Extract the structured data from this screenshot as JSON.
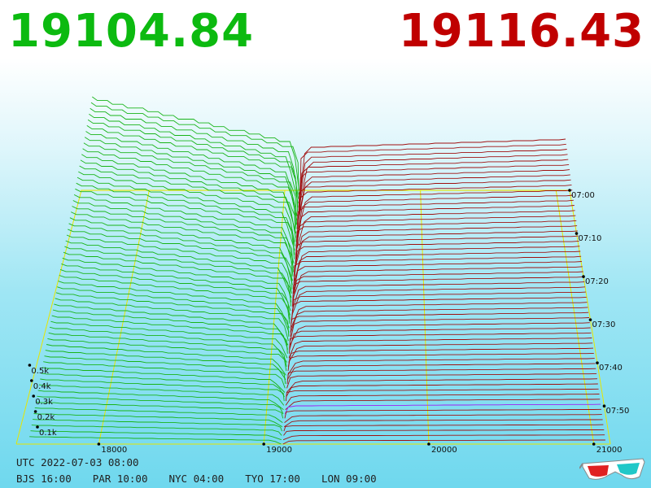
{
  "prices": {
    "bid": "19104.84",
    "ask": "19116.43"
  },
  "colors": {
    "bid": "#0cba10",
    "ask": "#c00000",
    "grid": "#e6e600",
    "cursor": "#a020f0"
  },
  "chart_data": {
    "type": "3d-depth-waterfall",
    "x_ticks": [
      "18000",
      "19000",
      "20000",
      "21000"
    ],
    "volume_ticks": [
      "0.1k",
      "0.2k",
      "0.3k",
      "0.4k",
      "0.5k"
    ],
    "time_ticks": [
      "07:00",
      "07:10",
      "07:20",
      "07:30",
      "07:40",
      "07:50"
    ],
    "x_range": [
      17500,
      21100
    ],
    "bid": 19104.84,
    "ask": 19116.43
  },
  "footer": {
    "utc": "UTC 2022-07-03 08:00",
    "zones": [
      "BJS 16:00",
      "PAR 10:00",
      "NYC 04:00",
      "TYO 17:00",
      "LON 09:00"
    ]
  },
  "icons": {
    "glasses": "3d-glasses-icon"
  }
}
